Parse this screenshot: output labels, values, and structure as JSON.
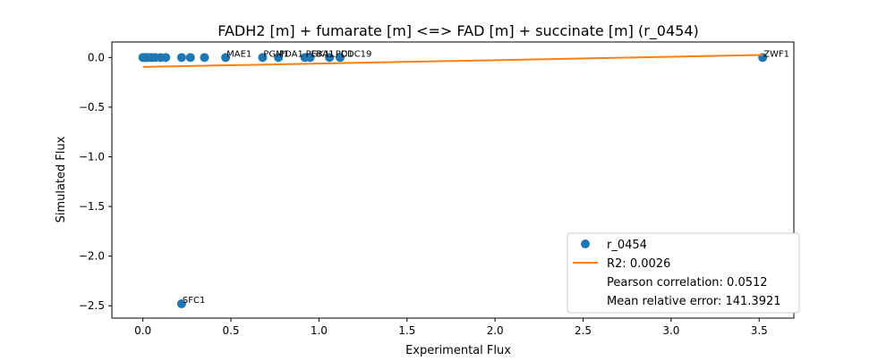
{
  "chart_data": {
    "type": "scatter",
    "title": "FADH2 [m] + fumarate [m] <=> FAD [m] + succinate [m] (r_0454)",
    "xlabel": "Experimental Flux",
    "ylabel": "Simulated Flux",
    "xlim": [
      -0.176,
      3.697
    ],
    "ylim": [
      -2.624,
      0.156
    ],
    "xticks": [
      0.0,
      0.5,
      1.0,
      1.5,
      2.0,
      2.5,
      3.0,
      3.5
    ],
    "xtick_labels": [
      "0.0",
      "0.5",
      "1.0",
      "1.5",
      "2.0",
      "2.5",
      "3.0",
      "3.5"
    ],
    "yticks": [
      0.0,
      -0.5,
      -1.0,
      -1.5,
      -2.0,
      -2.5
    ],
    "ytick_labels": [
      "0.0",
      "−0.5",
      "−1.0",
      "−1.5",
      "−2.0",
      "−2.5"
    ],
    "grid": false,
    "legend_position": "lower-right",
    "series": [
      {
        "name": "r_0454",
        "color": "#1f77b4",
        "marker": "circle",
        "points": [
          {
            "x": 0.0,
            "y": 0.0,
            "label": ""
          },
          {
            "x": 0.01,
            "y": 0.0,
            "label": ""
          },
          {
            "x": 0.02,
            "y": 0.0,
            "label": ""
          },
          {
            "x": 0.03,
            "y": 0.0,
            "label": ""
          },
          {
            "x": 0.05,
            "y": 0.0,
            "label": ""
          },
          {
            "x": 0.07,
            "y": 0.0,
            "label": ""
          },
          {
            "x": 0.1,
            "y": 0.0,
            "label": ""
          },
          {
            "x": 0.13,
            "y": 0.0,
            "label": ""
          },
          {
            "x": 0.22,
            "y": 0.0,
            "label": ""
          },
          {
            "x": 0.27,
            "y": 0.0,
            "label": ""
          },
          {
            "x": 0.35,
            "y": 0.0,
            "label": ""
          },
          {
            "x": 0.47,
            "y": 0.0,
            "label": "MAE1"
          },
          {
            "x": 0.68,
            "y": 0.0,
            "label": "PGM1"
          },
          {
            "x": 0.77,
            "y": 0.0,
            "label": "PDA1"
          },
          {
            "x": 0.92,
            "y": 0.0,
            "label": "PGK1"
          },
          {
            "x": 0.95,
            "y": 0.0,
            "label": "FBA1"
          },
          {
            "x": 1.06,
            "y": 0.0,
            "label": "LPD1"
          },
          {
            "x": 1.12,
            "y": 0.0,
            "label": "CDC19"
          },
          {
            "x": 3.52,
            "y": 0.0,
            "label": "ZWF1"
          },
          {
            "x": 0.22,
            "y": -2.48,
            "label": "SFC1"
          }
        ]
      },
      {
        "name": "R2: 0.0026",
        "color": "#ff7f0e",
        "marker": "line",
        "points": [
          {
            "x": 0.0,
            "y": -0.095
          },
          {
            "x": 3.52,
            "y": 0.025
          }
        ]
      }
    ],
    "legend_extra": [
      "Pearson correlation: 0.0512",
      "Mean relative error: 141.3921"
    ]
  }
}
